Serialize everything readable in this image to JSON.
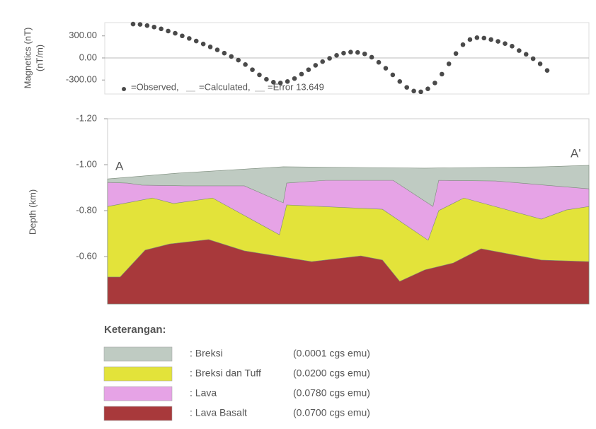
{
  "chart_data": [
    {
      "type": "scatter",
      "y_label": "Magnetics (nT)",
      "y_label_2": "(nT/m)",
      "series": [
        {
          "name": "=Observed,",
          "color": "#4a4a4a",
          "values": [
            460,
            455,
            440,
            420,
            395,
            365,
            335,
            300,
            265,
            230,
            190,
            150,
            110,
            65,
            20,
            -30,
            -90,
            -160,
            -230,
            -290,
            -330,
            -340,
            -320,
            -280,
            -220,
            -160,
            -100,
            -50,
            -5,
            35,
            65,
            80,
            75,
            55,
            10,
            -60,
            -140,
            -230,
            -320,
            -400,
            -450,
            -460,
            -420,
            -340,
            -220,
            -80,
            60,
            180,
            250,
            275,
            270,
            250,
            225,
            195,
            160,
            100,
            50,
            -10,
            -80,
            -170
          ]
        }
      ],
      "legend_calculated": "=Calculated,",
      "legend_error": "=Error 13.649",
      "ylim": [
        -490,
        480
      ],
      "yticks": [
        {
          "value": 300,
          "label": "300.00"
        },
        {
          "value": 0,
          "label": "0.00"
        },
        {
          "value": -300,
          "label": "-300.00"
        }
      ]
    },
    {
      "type": "area",
      "y_label": "Depth (km)",
      "y_direction": "down",
      "label_left": "A",
      "label_right": "A'",
      "legend_title": "Keterangan:",
      "xlim": [
        0,
        100
      ],
      "ylim": [
        -1.2,
        -0.394
      ],
      "yticks": [
        {
          "value": -1.2,
          "label": "-1.20"
        },
        {
          "value": -1.0,
          "label": "-1.00"
        },
        {
          "value": -0.8,
          "label": "-0.80"
        },
        {
          "value": -0.6,
          "label": "-0.60"
        }
      ],
      "series": [
        {
          "name": ": Breksi",
          "note": "(0.0001 cgs emu)",
          "color": "#bfcbc2",
          "x": [
            0,
            14.4,
            36.5,
            65.9,
            90.9,
            100
          ],
          "values": [
            -0.938,
            -0.963,
            -0.991,
            -0.985,
            -0.991,
            -0.997
          ]
        },
        {
          "name": ": Breksi dan Tuff",
          "note": "(0.0200 cgs emu)",
          "color": "#e3e33a",
          "x": [
            0,
            4.1,
            9.3,
            13.7,
            21.8,
            35.7,
            37.2,
            57.1,
            66.6,
            68.8,
            74.0,
            90.1,
            95.3,
            100
          ],
          "values": [
            -0.818,
            -0.834,
            -0.855,
            -0.831,
            -0.855,
            -0.695,
            -0.825,
            -0.806,
            -0.671,
            -0.8,
            -0.855,
            -0.763,
            -0.803,
            -0.818
          ]
        },
        {
          "name": ": Lava",
          "note": "(0.0780 cgs emu)",
          "color": "#e6a3e6",
          "x": [
            0,
            4.1,
            7.1,
            15.9,
            28.4,
            36.5,
            37.2,
            45.3,
            59.3,
            67.6,
            68.8,
            80.6,
            100
          ],
          "values": [
            -0.923,
            -0.92,
            -0.911,
            -0.908,
            -0.908,
            -0.834,
            -0.92,
            -0.932,
            -0.932,
            -0.818,
            -0.932,
            -0.929,
            -0.895
          ]
        },
        {
          "name": ": Lava Basalt",
          "note": "(0.0700 cgs emu)",
          "color": "#a8393b",
          "x": [
            0,
            2.6,
            7.8,
            12.9,
            21.0,
            28.4,
            42.4,
            52.6,
            57.1,
            60.7,
            65.9,
            71.8,
            77.6,
            90.1,
            100
          ],
          "values": [
            -0.511,
            -0.511,
            -0.628,
            -0.655,
            -0.674,
            -0.625,
            -0.578,
            -0.603,
            -0.585,
            -0.492,
            -0.542,
            -0.572,
            -0.634,
            -0.585,
            -0.578
          ]
        }
      ],
      "draw_order": [
        0,
        2,
        1,
        3
      ]
    }
  ]
}
